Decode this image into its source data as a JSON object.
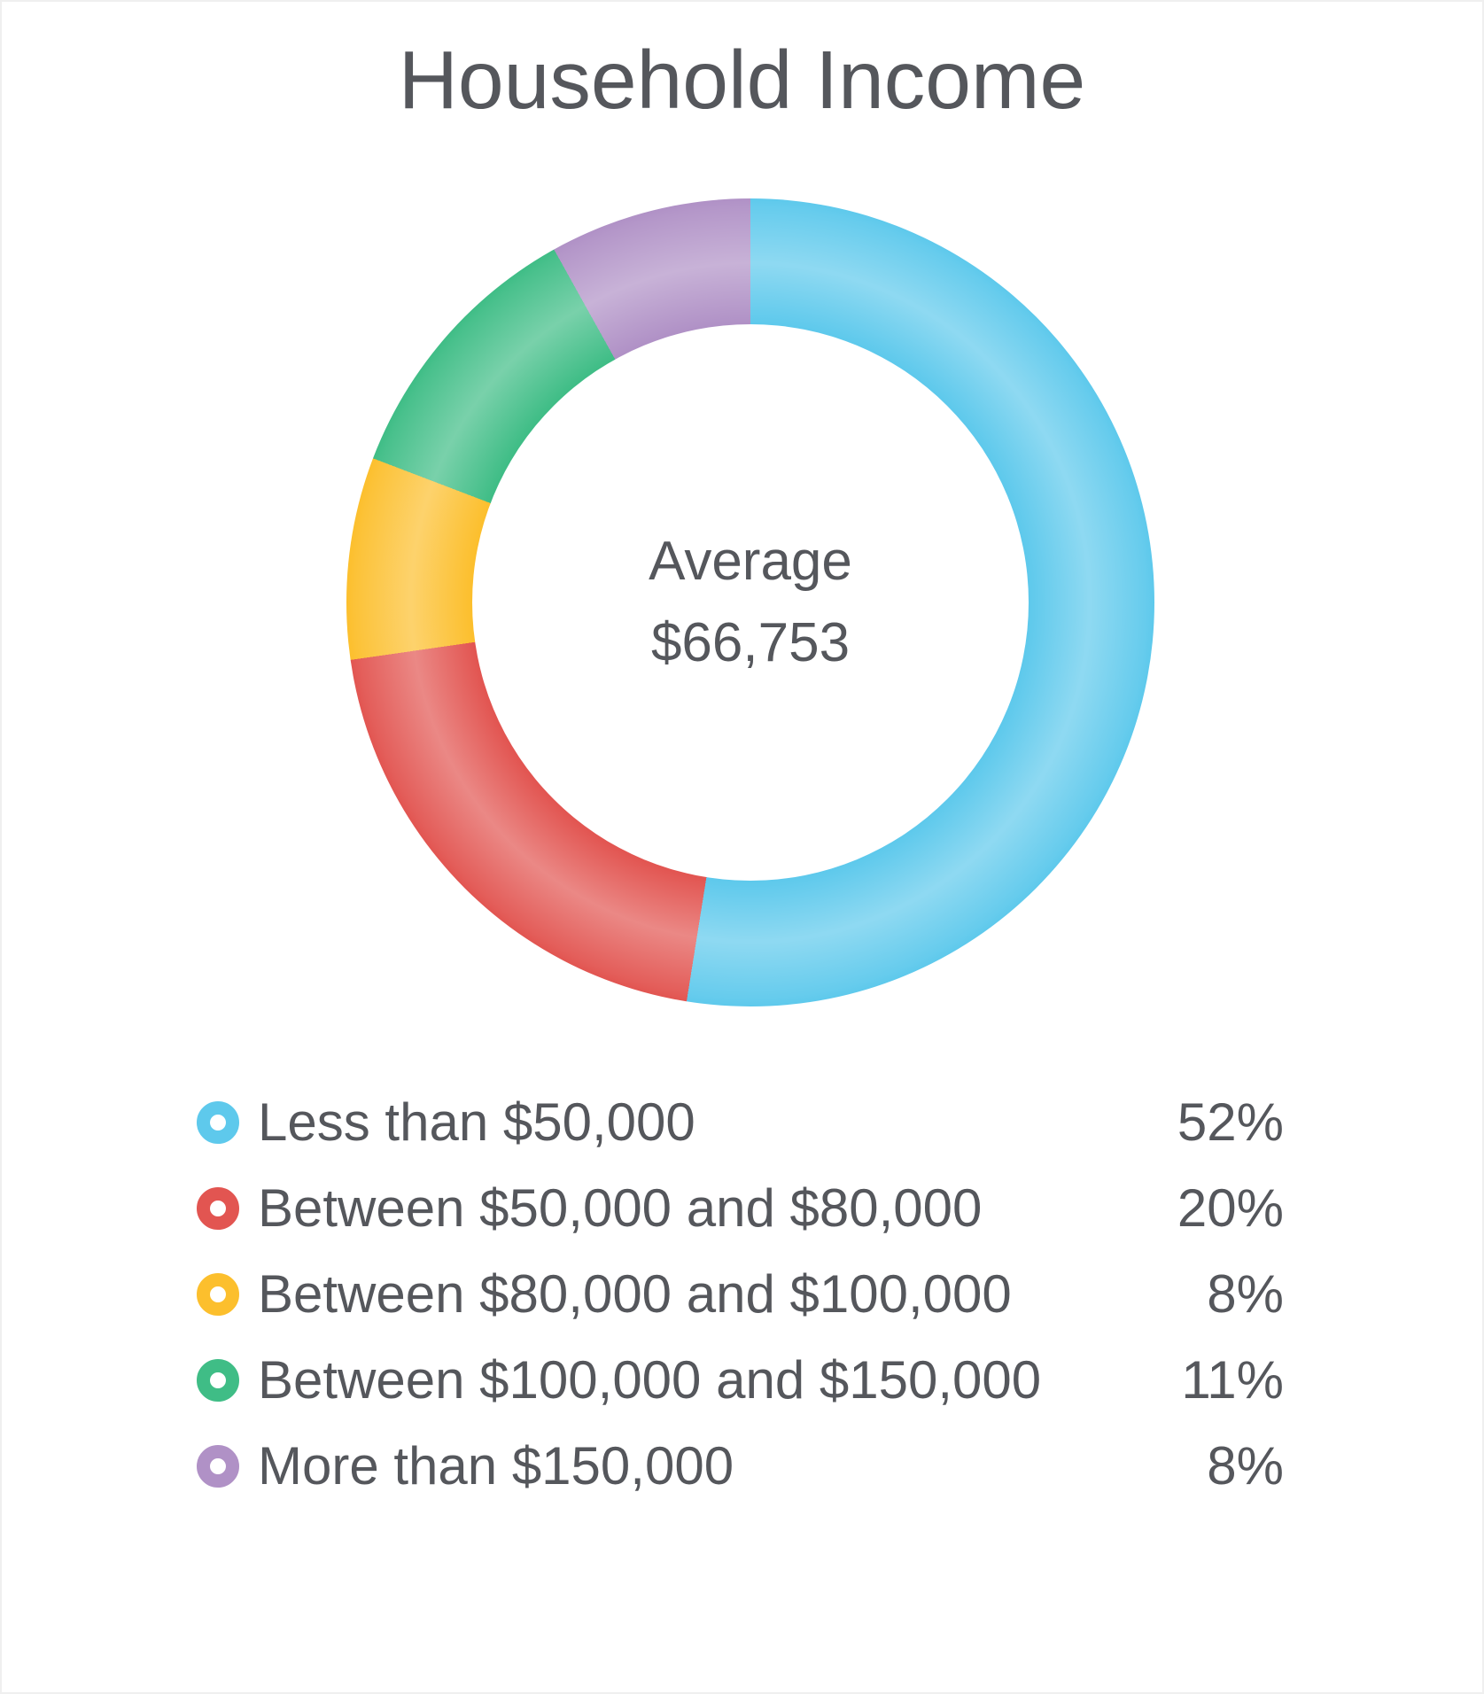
{
  "title": "Household Income",
  "center_label": {
    "line1": "Average",
    "line2": "$66,753"
  },
  "chart_data": {
    "type": "pie",
    "subtype": "donut",
    "title": "Household Income",
    "center_text": [
      "Average",
      "$66,753"
    ],
    "start_angle": "top",
    "direction": "clockwise",
    "cutout_ratio": 0.69,
    "legend_position": "bottom",
    "marker_style": "ring-icon",
    "values_total": 99,
    "segments": [
      {
        "label": "Less than $50,000",
        "value": 52,
        "percent_label": "52%",
        "color": "#5ec9ec"
      },
      {
        "label": "Between $50,000 and $80,000",
        "value": 20,
        "percent_label": "20%",
        "color": "#e25551"
      },
      {
        "label": "Between $80,000 and $100,000",
        "value": 8,
        "percent_label": "8%",
        "color": "#fcbf2d"
      },
      {
        "label": "Between $100,000 and $150,000",
        "value": 11,
        "percent_label": "11%",
        "color": "#3fbd86"
      },
      {
        "label": "More than $150,000",
        "value": 8,
        "percent_label": "8%",
        "color": "#b091c6"
      }
    ],
    "text_color": "#55575c"
  }
}
